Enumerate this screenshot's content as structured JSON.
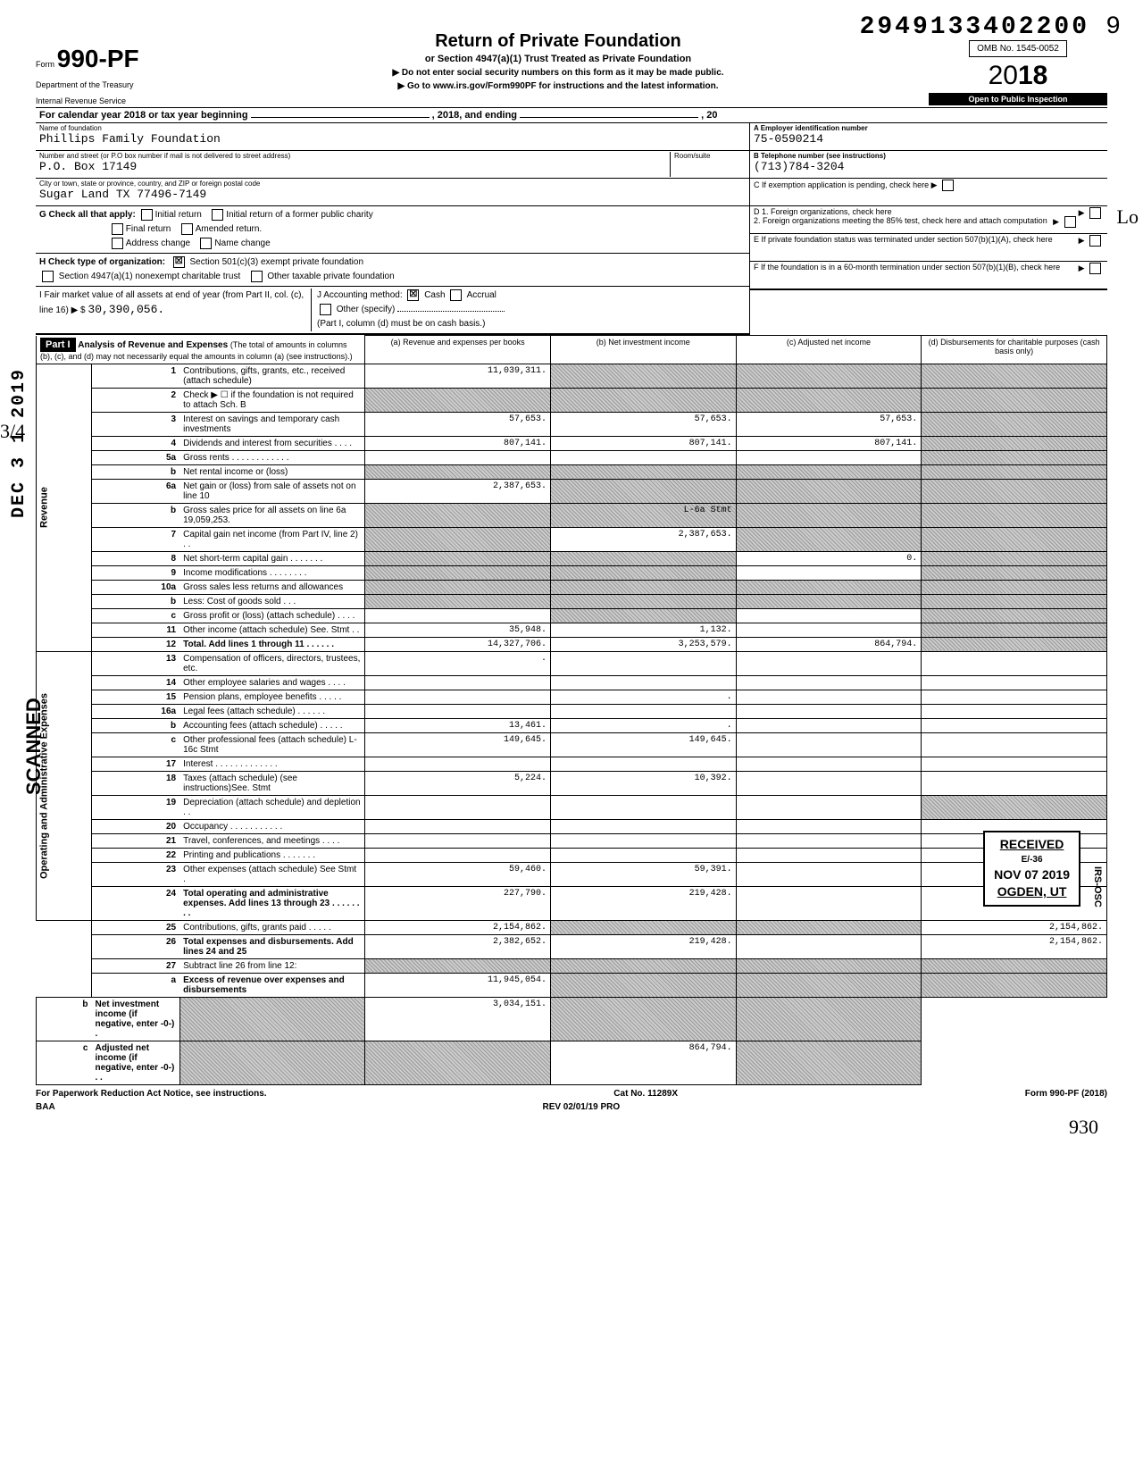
{
  "doc_id": "2949133402200",
  "doc_id_suffix": "9",
  "form": {
    "prefix": "Form",
    "number": "990-PF",
    "title": "Return of Private Foundation",
    "subtitle": "or Section 4947(a)(1) Trust Treated as Private Foundation",
    "instr1": "▶ Do not enter social security numbers on this form as it may be made public.",
    "instr2": "▶ Go to www.irs.gov/Form990PF for instructions and the latest information.",
    "dept1": "Department of the Treasury",
    "dept2": "Internal Revenue Service",
    "omb": "OMB No. 1545-0052",
    "year": "2018",
    "year_outline": "20",
    "public_inspection": "Open to Public Inspection"
  },
  "cal_year": {
    "prefix": "For calendar year 2018 or tax year beginning",
    "mid": ", 2018, and ending",
    "suffix": ", 20"
  },
  "entity": {
    "name_label": "Name of foundation",
    "name": "Phillips Family Foundation",
    "addr_label": "Number and street (or P.O box number if mail is not delivered to street address)",
    "addr": "P.O. Box 17149",
    "room_label": "Room/suite",
    "city_label": "City or town, state or province, country, and ZIP or foreign postal code",
    "city": "Sugar Land TX 77496-7149",
    "ein_label": "A  Employer identification number",
    "ein": "75-0590214",
    "phone_label": "B  Telephone number (see instructions)",
    "phone": "(713)784-3204",
    "c_label": "C  If exemption application is pending, check here ▶",
    "d1_label": "D  1. Foreign organizations, check here",
    "d2_label": "2. Foreign organizations meeting the 85% test, check here and attach computation",
    "e_label": "E  If private foundation status was terminated under section 507(b)(1)(A), check here",
    "f_label": "F  If the foundation is in a 60-month termination under section 507(b)(1)(B), check here"
  },
  "check_g": {
    "label": "G  Check all that apply:",
    "opts": [
      "Initial return",
      "Initial return of a former public charity",
      "Final return",
      "Amended return.",
      "Address change",
      "Name change"
    ]
  },
  "check_h": {
    "label": "H  Check type of organization:",
    "opt1": "Section 501(c)(3) exempt private foundation",
    "opt2": "Section 4947(a)(1) nonexempt charitable trust",
    "opt3": "Other taxable private foundation"
  },
  "line_i": {
    "label": "I   Fair market value of all assets at end of year (from Part II, col. (c), line 16) ▶ $",
    "value": "30,390,056."
  },
  "line_j": {
    "label": "J   Accounting method:",
    "cash": "Cash",
    "accrual": "Accrual",
    "other": "Other (specify)",
    "note": "(Part I, column (d) must be on cash basis.)"
  },
  "part1": {
    "label": "Part I",
    "title": "Analysis of Revenue and Expenses",
    "title_note": "(The total of amounts in columns (b), (c), and (d) may not necessarily equal the amounts in column (a) (see instructions).)",
    "col_a": "(a) Revenue and expenses per books",
    "col_b": "(b) Net investment income",
    "col_c": "(c) Adjusted net income",
    "col_d": "(d) Disbursements for charitable purposes (cash basis only)"
  },
  "vert_revenue": "Revenue",
  "vert_expenses": "Operating and Administrative Expenses",
  "rows": [
    {
      "n": "1",
      "desc": "Contributions, gifts, grants, etc., received (attach schedule)",
      "a": "11,039,311.",
      "b": "shaded",
      "c": "shaded",
      "d": "shaded"
    },
    {
      "n": "2",
      "desc": "Check ▶ ☐ if the foundation is not required to attach Sch. B",
      "a": "shaded",
      "b": "shaded",
      "c": "shaded",
      "d": "shaded"
    },
    {
      "n": "3",
      "desc": "Interest on savings and temporary cash investments",
      "a": "57,653.",
      "b": "57,653.",
      "c": "57,653.",
      "d": "shaded"
    },
    {
      "n": "4",
      "desc": "Dividends and interest from securities . . . .",
      "a": "807,141.",
      "b": "807,141.",
      "c": "807,141.",
      "d": "shaded"
    },
    {
      "n": "5a",
      "desc": "Gross rents . . . . . . . . . . . .",
      "a": "",
      "b": "",
      "c": "",
      "d": "shaded"
    },
    {
      "n": "b",
      "desc": "Net rental income or (loss)",
      "a": "shaded",
      "b": "shaded",
      "c": "shaded",
      "d": "shaded"
    },
    {
      "n": "6a",
      "desc": "Net gain or (loss) from sale of assets not on line 10",
      "a": "2,387,653.",
      "b": "shaded",
      "c": "shaded",
      "d": "shaded"
    },
    {
      "n": "b",
      "desc": "Gross sales price for all assets on line 6a  19,059,253.",
      "a": "shaded",
      "b": "shaded-6a",
      "c": "shaded",
      "d": "shaded"
    },
    {
      "n": "7",
      "desc": "Capital gain net income (from Part IV, line 2) . .",
      "a": "shaded",
      "b": "2,387,653.",
      "c": "shaded",
      "d": "shaded"
    },
    {
      "n": "8",
      "desc": "Net short-term capital gain . . . . . . .",
      "a": "shaded",
      "b": "shaded",
      "c": "0.",
      "d": "shaded"
    },
    {
      "n": "9",
      "desc": "Income modifications  . . . . . . . .",
      "a": "shaded",
      "b": "shaded",
      "c": "",
      "d": "shaded"
    },
    {
      "n": "10a",
      "desc": "Gross sales less returns and allowances",
      "a": "shaded",
      "b": "shaded",
      "c": "shaded",
      "d": "shaded"
    },
    {
      "n": "b",
      "desc": "Less: Cost of goods sold . . .",
      "a": "shaded",
      "b": "shaded",
      "c": "shaded",
      "d": "shaded"
    },
    {
      "n": "c",
      "desc": "Gross profit or (loss) (attach schedule) . . . .",
      "a": "",
      "b": "shaded",
      "c": "",
      "d": "shaded"
    },
    {
      "n": "11",
      "desc": "Other income (attach schedule) See. Stmt . .",
      "a": "35,948.",
      "b": "1,132.",
      "c": "",
      "d": "shaded"
    },
    {
      "n": "12",
      "desc": "Total. Add lines 1 through 11 . . . . . .",
      "a": "14,327,706.",
      "b": "3,253,579.",
      "c": "864,794.",
      "d": "shaded",
      "bold": true
    },
    {
      "n": "13",
      "desc": "Compensation of officers, directors, trustees, etc.",
      "a": ".",
      "b": "",
      "c": "",
      "d": ""
    },
    {
      "n": "14",
      "desc": "Other employee salaries and wages . . . .",
      "a": "",
      "b": "",
      "c": "",
      "d": ""
    },
    {
      "n": "15",
      "desc": "Pension plans, employee benefits . . . . .",
      "a": "",
      "b": ".",
      "c": "",
      "d": ""
    },
    {
      "n": "16a",
      "desc": "Legal fees (attach schedule) . . . . . .",
      "a": "",
      "b": "",
      "c": "",
      "d": ""
    },
    {
      "n": "b",
      "desc": "Accounting fees (attach schedule) . . . . .",
      "a": "13,461.",
      "b": ".",
      "c": "",
      "d": ""
    },
    {
      "n": "c",
      "desc": "Other professional fees (attach schedule) L-16c Stmt",
      "a": "149,645.",
      "b": "149,645.",
      "c": "",
      "d": ""
    },
    {
      "n": "17",
      "desc": "Interest . . . . . . . . . . . . .",
      "a": "",
      "b": "",
      "c": "",
      "d": ""
    },
    {
      "n": "18",
      "desc": "Taxes (attach schedule) (see instructions)See. Stmt",
      "a": "5,224.",
      "b": "10,392.",
      "c": "",
      "d": ""
    },
    {
      "n": "19",
      "desc": "Depreciation (attach schedule) and depletion . .",
      "a": "",
      "b": "",
      "c": "",
      "d": "shaded"
    },
    {
      "n": "20",
      "desc": "Occupancy . . . . . . . . . . .",
      "a": "",
      "b": "",
      "c": "",
      "d": ""
    },
    {
      "n": "21",
      "desc": "Travel, conferences, and meetings . . . .",
      "a": "",
      "b": "",
      "c": "",
      "d": ""
    },
    {
      "n": "22",
      "desc": "Printing and publications . . . . . . .",
      "a": "",
      "b": "",
      "c": "",
      "d": ""
    },
    {
      "n": "23",
      "desc": "Other expenses (attach schedule) See Stmt .",
      "a": "59,460.",
      "b": "59,391.",
      "c": "",
      "d": ""
    },
    {
      "n": "24",
      "desc": "Total operating and administrative expenses. Add lines 13 through 23 . . . . . . . .",
      "a": "227,790.",
      "b": "219,428.",
      "c": "",
      "d": "",
      "bold": true
    },
    {
      "n": "25",
      "desc": "Contributions, gifts, grants paid . . . . .",
      "a": "2,154,862.",
      "b": "shaded",
      "c": "shaded",
      "d": "2,154,862."
    },
    {
      "n": "26",
      "desc": "Total expenses and disbursements. Add lines 24 and 25",
      "a": "2,382,652.",
      "b": "219,428.",
      "c": "",
      "d": "2,154,862.",
      "bold": true
    },
    {
      "n": "27",
      "desc": "Subtract line 26 from line 12:",
      "a": "shaded",
      "b": "shaded",
      "c": "shaded",
      "d": "shaded"
    },
    {
      "n": "a",
      "desc": "Excess of revenue over expenses and disbursements",
      "a": "11,945,054.",
      "b": "shaded",
      "c": "shaded",
      "d": "shaded",
      "bold": true
    },
    {
      "n": "b",
      "desc": "Net investment income (if negative, enter -0-) .",
      "a": "shaded",
      "b": "3,034,151.",
      "c": "shaded",
      "d": "shaded",
      "bold": true
    },
    {
      "n": "c",
      "desc": "Adjusted net income (if negative, enter -0-) . .",
      "a": "shaded",
      "b": "shaded",
      "c": "864,794.",
      "d": "shaded",
      "bold": true
    }
  ],
  "footer": {
    "left": "For Paperwork Reduction Act Notice, see instructions.",
    "baa": "BAA",
    "cat": "Cat No. 11289X",
    "rev": "REV 02/01/19 PRO",
    "form": "Form 990-PF (2018)"
  },
  "stamps": {
    "date": "DEC 3 1 2019",
    "scanned": "SCANNED",
    "received": "RECEIVED",
    "received_date": "NOV 07 2019",
    "ogden": "OGDEN, UT",
    "irs_osc": "IRS-OSC",
    "ei36": "E/-36",
    "frac": "3/4",
    "lo": "Lo",
    "sig": "930"
  }
}
